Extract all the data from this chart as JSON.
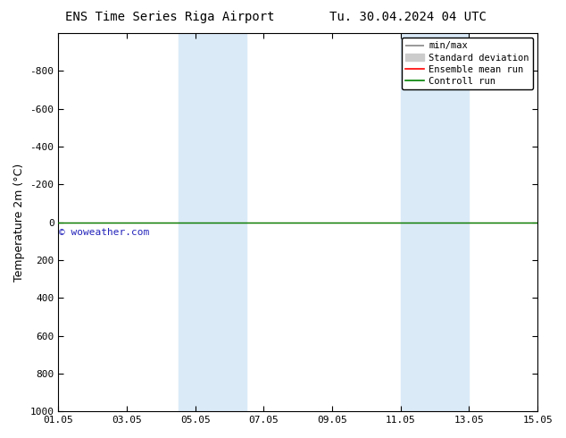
{
  "title_left": "ENS Time Series Riga Airport",
  "title_right": "Tu. 30.04.2024 04 UTC",
  "ylabel": "Temperature 2m (°C)",
  "xtick_labels": [
    "01.05",
    "03.05",
    "05.05",
    "07.05",
    "09.05",
    "11.05",
    "13.05",
    "15.05"
  ],
  "xtick_positions": [
    0,
    2,
    4,
    6,
    8,
    10,
    12,
    14
  ],
  "ylim_min": -1000,
  "ylim_max": 1000,
  "ytick_positions": [
    -800,
    -600,
    -400,
    -200,
    0,
    200,
    400,
    600,
    800,
    1000
  ],
  "ytick_labels": [
    "-800",
    "-600",
    "-400",
    "-200",
    "0",
    "200",
    "400",
    "600",
    "800",
    "1000"
  ],
  "shaded_bands": [
    {
      "x_start": 3.5,
      "x_end": 5.5
    },
    {
      "x_start": 10.0,
      "x_end": 12.0
    }
  ],
  "shaded_color": "#daeaf7",
  "green_line_y": 0,
  "red_line_y": 0,
  "watermark": "© woweather.com",
  "watermark_color": "#2222bb",
  "background_color": "#ffffff",
  "legend_minmax_color": "#888888",
  "legend_std_color": "#cccccc",
  "legend_ens_color": "red",
  "legend_ctrl_color": "green"
}
